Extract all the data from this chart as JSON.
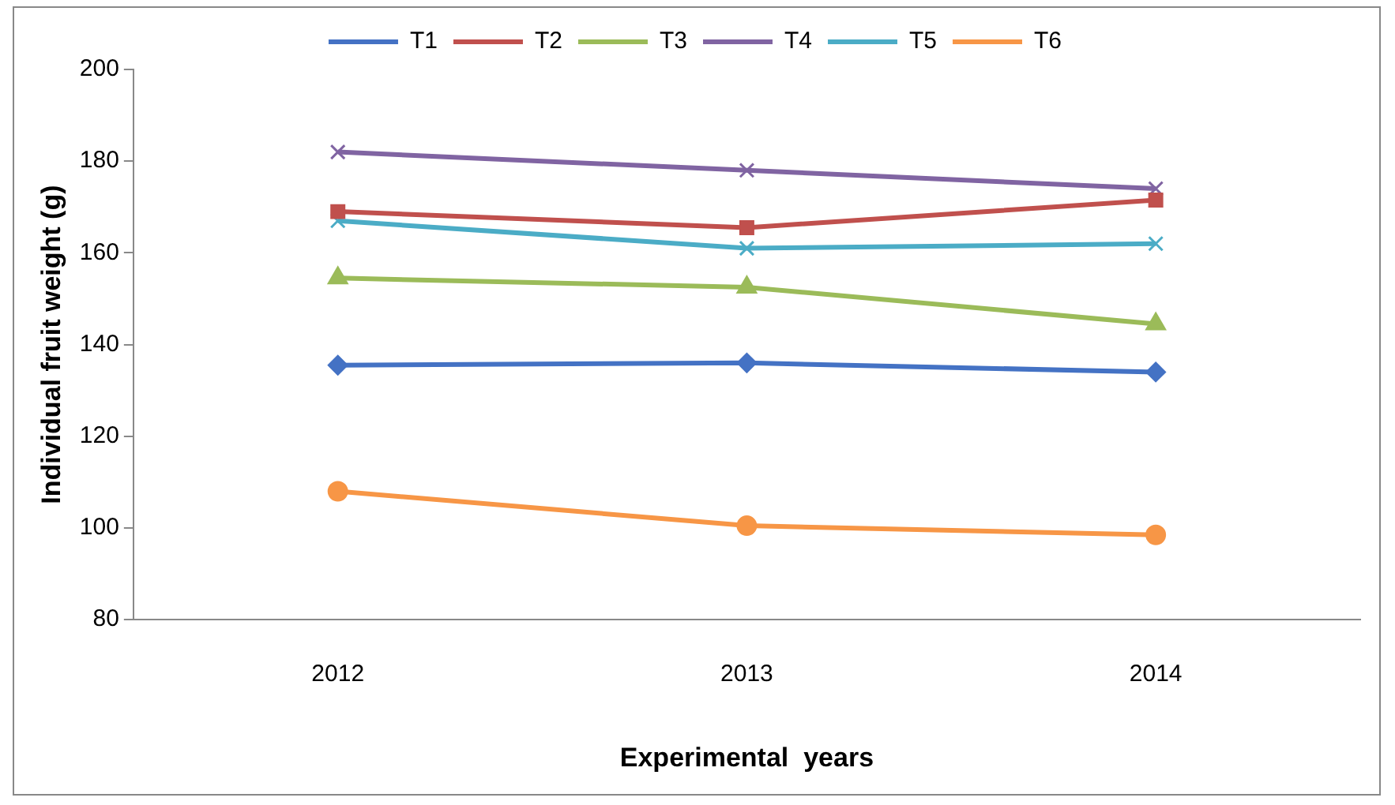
{
  "chart_data": {
    "type": "line",
    "xlabel": "Experimental  years",
    "ylabel": "Individual fruit weight (g)",
    "categories": [
      "2012",
      "2013",
      "2014"
    ],
    "ylim": [
      80,
      200
    ],
    "yticks": [
      80,
      100,
      120,
      140,
      160,
      180,
      200
    ],
    "grid": false,
    "legend": "top",
    "line_style": "solid",
    "series": [
      {
        "name": "T1",
        "color": "#4472c4",
        "marker": "diamond",
        "values": [
          135.5,
          136,
          134
        ]
      },
      {
        "name": "T2",
        "color": "#c0504d",
        "marker": "square",
        "values": [
          169,
          165.5,
          171.5
        ]
      },
      {
        "name": "T3",
        "color": "#9bbb59",
        "marker": "triangle",
        "values": [
          154.5,
          152.5,
          144.5
        ]
      },
      {
        "name": "T4",
        "color": "#8064a2",
        "marker": "cross",
        "values": [
          182,
          178,
          174
        ]
      },
      {
        "name": "T5",
        "color": "#4bacc6",
        "marker": "cross",
        "values": [
          167,
          161,
          162
        ]
      },
      {
        "name": "T6",
        "color": "#f79646",
        "marker": "circle",
        "values": [
          108,
          100.5,
          98.5
        ]
      }
    ]
  }
}
